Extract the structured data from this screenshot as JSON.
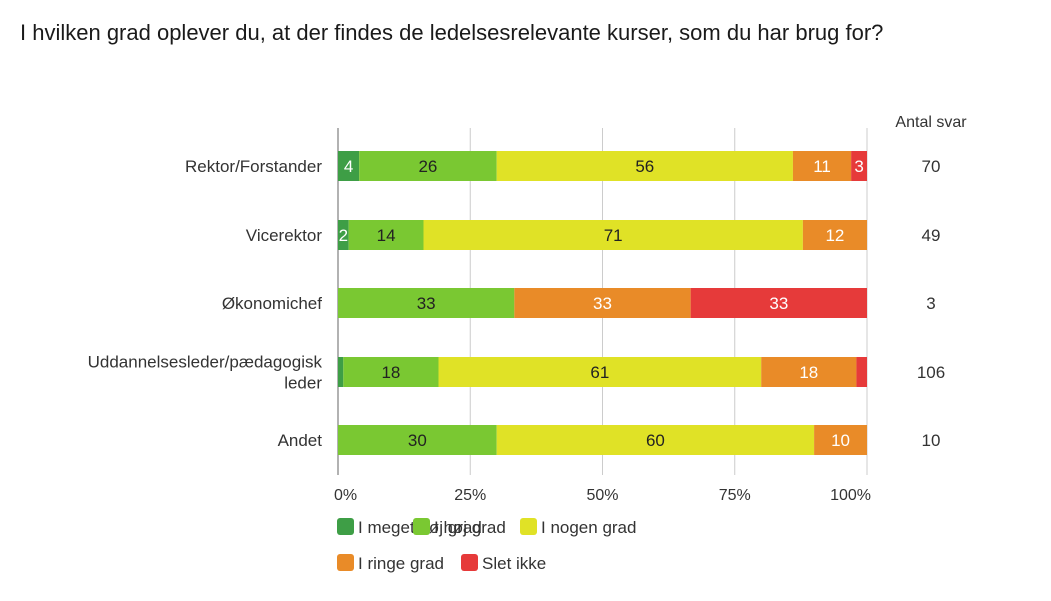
{
  "chart_data": {
    "type": "bar",
    "orientation": "horizontal",
    "stacked": true,
    "normalized": true,
    "title": "I hvilken grad oplever du, at der findes de ledelsesrelevante kurser, som du har brug for?",
    "categories": [
      "Rektor/Forstander",
      "Vicerektor",
      "Økonomichef",
      "Uddannelsesleder/pædagogisk leder",
      "Andet"
    ],
    "category_lines": [
      [
        "Rektor/Forstander"
      ],
      [
        "Vicerektor"
      ],
      [
        "Økonomichef"
      ],
      [
        "Uddannelsesleder/pædagogisk",
        "leder"
      ],
      [
        "Andet"
      ]
    ],
    "series": [
      {
        "name": "I meget høj grad",
        "color": "#3e9e46",
        "label_color": "#ffffff",
        "values": [
          4,
          2,
          0,
          1,
          0
        ]
      },
      {
        "name": "I høj grad",
        "color": "#7ac832",
        "label_color": "#222222",
        "values": [
          26,
          14,
          33,
          18,
          30
        ]
      },
      {
        "name": "I nogen grad",
        "color": "#e0e226",
        "label_color": "#222222",
        "values": [
          56,
          71,
          0,
          61,
          60
        ]
      },
      {
        "name": "I ringe grad",
        "color": "#e98b28",
        "label_color": "#ffffff",
        "values": [
          11,
          12,
          33,
          18,
          10
        ]
      },
      {
        "name": "Slet ikke",
        "color": "#e63a3a",
        "label_color": "#ffffff",
        "values": [
          3,
          0,
          33,
          2,
          0
        ]
      }
    ],
    "hidden_labels": [
      [],
      [],
      [],
      [
        0,
        4
      ],
      []
    ],
    "counts_header": "Antal svar",
    "counts": [
      70,
      49,
      3,
      106,
      10
    ],
    "xticks": [
      "0%",
      "25%",
      "50%",
      "75%",
      "100%"
    ],
    "xlim": [
      0,
      100
    ],
    "xlabel": "",
    "ylabel": "",
    "grid": true,
    "legend_position": "bottom"
  }
}
